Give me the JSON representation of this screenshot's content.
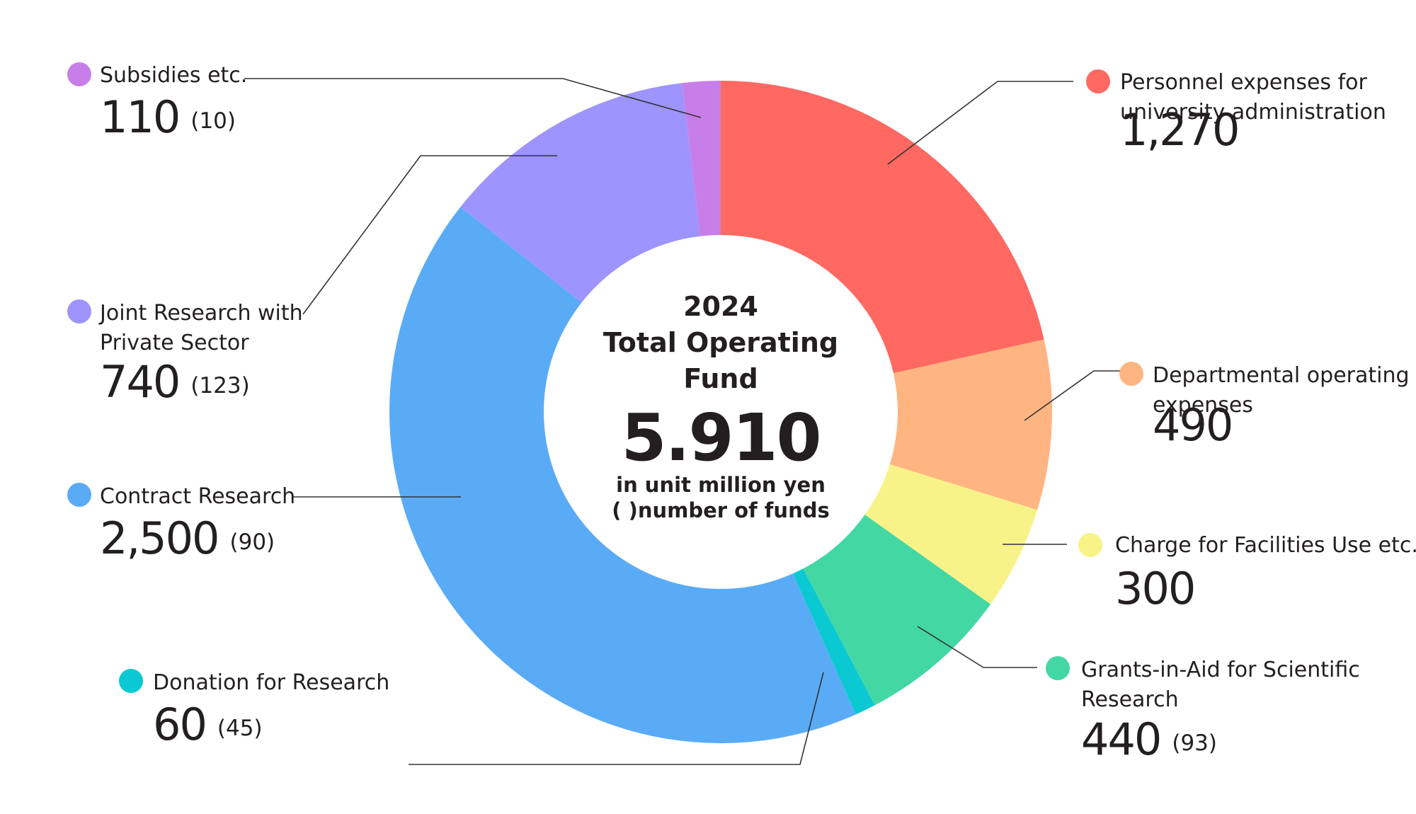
{
  "chart_data": {
    "type": "donut",
    "center": {
      "year": "2024",
      "title_line1": "Total Operating",
      "title_line2": "Fund",
      "total": "5.910",
      "unit_note": "in unit million yen",
      "count_note": "( )number of funds"
    },
    "segments": [
      {
        "name_lines": [
          "Personnel expenses for",
          "university administration"
        ],
        "value": 1270,
        "value_label": "1,270",
        "count": "",
        "color": "#ff6961"
      },
      {
        "name_lines": [
          "Departmental operating",
          "expenses"
        ],
        "value": 490,
        "value_label": "490",
        "count": "",
        "color": "#ffb581"
      },
      {
        "name_lines": [
          "Charge for Facilities Use etc."
        ],
        "value": 300,
        "value_label": "300",
        "count": "",
        "color": "#f8f388"
      },
      {
        "name_lines": [
          "Grants-in-Aid for Scientific",
          "Research"
        ],
        "value": 440,
        "value_label": "440",
        "count": "(93)",
        "color": "#43d7a4"
      },
      {
        "name_lines": [
          "Donation for Research"
        ],
        "value": 60,
        "value_label": "60",
        "count": "(45)",
        "color": "#0bc9d3"
      },
      {
        "name_lines": [
          "Contract Research"
        ],
        "value": 2500,
        "value_label": "2,500",
        "count": "(90)",
        "color": "#5aabf5"
      },
      {
        "name_lines": [
          "Joint Research with",
          "Private Sector"
        ],
        "value": 740,
        "value_label": "740",
        "count": "(123)",
        "color": "#9d94fe"
      },
      {
        "name_lines": [
          "Subsidies etc."
        ],
        "value": 110,
        "value_label": "110",
        "count": "(10)",
        "color": "#c87ee9"
      }
    ]
  }
}
